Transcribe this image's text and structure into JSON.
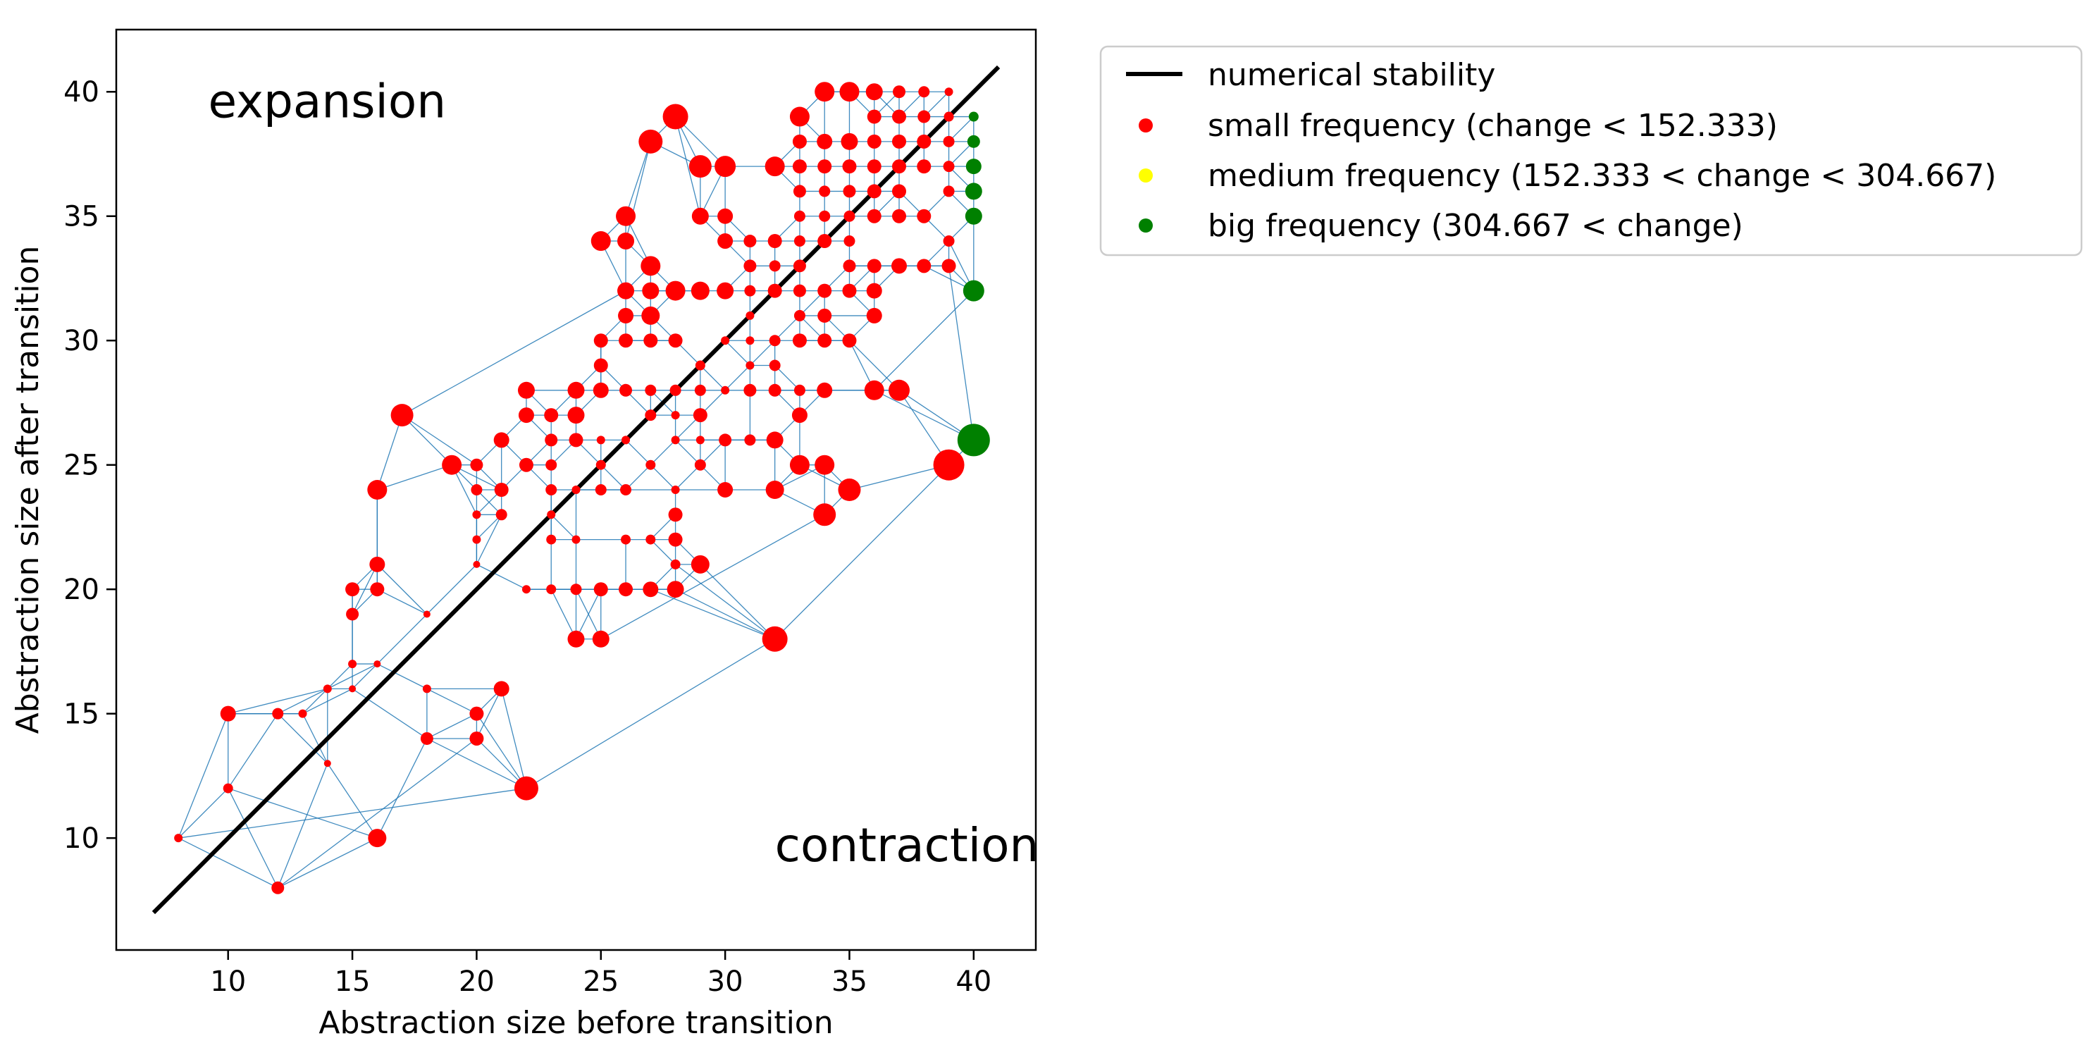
{
  "chart_data": {
    "type": "scatter",
    "xlabel": "Abstraction size before transition",
    "ylabel": "Abstraction size after transition",
    "xlim": [
      5.5,
      42.5
    ],
    "ylim": [
      5.5,
      42.5
    ],
    "xticks": [
      10,
      15,
      20,
      25,
      30,
      35,
      40
    ],
    "yticks": [
      10,
      15,
      20,
      25,
      30,
      35,
      40
    ],
    "annotations": [
      {
        "text": "expansion",
        "x": 9.2,
        "y": 39.6
      },
      {
        "text": "contraction",
        "x": 32.0,
        "y": 9.7
      }
    ],
    "reference_line": {
      "name": "numerical stability",
      "from": [
        7,
        7
      ],
      "to": [
        41,
        41
      ]
    },
    "legend": {
      "placement": "outside-upper-right",
      "entries": [
        {
          "label": "numerical stability",
          "marker": "line",
          "color": "#000000"
        },
        {
          "label": "small frequency (change < 152.333)",
          "marker": "dot",
          "color": "#ff0000"
        },
        {
          "label": "medium frequency (152.333 < change < 304.667)",
          "marker": "dot",
          "color": "#ffff00"
        },
        {
          "label": "big frequency (304.667 < change)",
          "marker": "dot",
          "color": "#008000"
        }
      ]
    },
    "colors": {
      "small": "#ff0000",
      "medium": "#ffff00",
      "big": "#008000",
      "edge": "#1f77b4",
      "line": "#000000"
    },
    "series": [
      {
        "name": "small frequency (change < 152.333)",
        "color": "#ff0000",
        "points": [
          [
            8,
            10,
            6
          ],
          [
            12,
            8,
            9
          ],
          [
            16,
            10,
            13
          ],
          [
            22,
            12,
            17
          ],
          [
            10,
            12,
            7
          ],
          [
            10,
            15,
            11
          ],
          [
            12,
            15,
            8
          ],
          [
            13,
            15,
            6
          ],
          [
            14,
            13,
            5
          ],
          [
            14,
            16,
            6
          ],
          [
            15,
            17,
            6
          ],
          [
            15,
            16,
            5
          ],
          [
            15,
            19,
            9
          ],
          [
            15,
            20,
            10
          ],
          [
            16,
            20,
            10
          ],
          [
            16,
            21,
            11
          ],
          [
            16,
            17,
            5
          ],
          [
            16,
            24,
            14
          ],
          [
            17,
            27,
            16
          ],
          [
            18,
            14,
            9
          ],
          [
            18,
            16,
            6
          ],
          [
            18,
            19,
            5
          ],
          [
            20,
            14,
            10
          ],
          [
            20,
            15,
            10
          ],
          [
            20,
            22,
            6
          ],
          [
            20,
            21,
            5
          ],
          [
            20,
            23,
            6
          ],
          [
            20,
            24,
            8
          ],
          [
            20,
            25,
            9
          ],
          [
            19,
            25,
            14
          ],
          [
            21,
            16,
            11
          ],
          [
            21,
            23,
            8
          ],
          [
            21,
            24,
            10
          ],
          [
            21,
            26,
            11
          ],
          [
            22,
            20,
            6
          ],
          [
            22,
            25,
            10
          ],
          [
            22,
            28,
            12
          ],
          [
            22,
            27,
            11
          ],
          [
            23,
            20,
            7
          ],
          [
            23,
            22,
            7
          ],
          [
            23,
            23,
            6
          ],
          [
            23,
            24,
            8
          ],
          [
            23,
            25,
            8
          ],
          [
            23,
            26,
            9
          ],
          [
            23,
            27,
            10
          ],
          [
            24,
            18,
            12
          ],
          [
            24,
            20,
            8
          ],
          [
            24,
            22,
            6
          ],
          [
            24,
            24,
            6
          ],
          [
            24,
            26,
            10
          ],
          [
            24,
            27,
            12
          ],
          [
            24,
            28,
            12
          ],
          [
            25,
            18,
            12
          ],
          [
            25,
            20,
            10
          ],
          [
            25,
            24,
            8
          ],
          [
            25,
            25,
            7
          ],
          [
            25,
            26,
            6
          ],
          [
            25,
            28,
            11
          ],
          [
            25,
            29,
            10
          ],
          [
            25,
            30,
            10
          ],
          [
            25,
            34,
            14
          ],
          [
            26,
            20,
            10
          ],
          [
            26,
            22,
            7
          ],
          [
            26,
            24,
            8
          ],
          [
            26,
            26,
            6
          ],
          [
            26,
            28,
            9
          ],
          [
            26,
            30,
            10
          ],
          [
            26,
            31,
            11
          ],
          [
            26,
            32,
            12
          ],
          [
            26,
            34,
            12
          ],
          [
            26,
            35,
            14
          ],
          [
            27,
            20,
            11
          ],
          [
            27,
            22,
            7
          ],
          [
            27,
            25,
            7
          ],
          [
            27,
            27,
            8
          ],
          [
            27,
            28,
            8
          ],
          [
            27,
            30,
            10
          ],
          [
            27,
            32,
            12
          ],
          [
            27,
            31,
            13
          ],
          [
            27,
            33,
            14
          ],
          [
            27,
            38,
            17
          ],
          [
            28,
            20,
            12
          ],
          [
            28,
            21,
            7
          ],
          [
            28,
            22,
            10
          ],
          [
            28,
            23,
            10
          ],
          [
            28,
            24,
            6
          ],
          [
            28,
            26,
            6
          ],
          [
            28,
            27,
            6
          ],
          [
            28,
            28,
            8
          ],
          [
            28,
            30,
            10
          ],
          [
            28,
            32,
            14
          ],
          [
            28,
            39,
            18
          ],
          [
            29,
            21,
            13
          ],
          [
            29,
            25,
            8
          ],
          [
            29,
            26,
            6
          ],
          [
            29,
            27,
            10
          ],
          [
            29,
            28,
            8
          ],
          [
            29,
            29,
            7
          ],
          [
            29,
            32,
            13
          ],
          [
            29,
            35,
            12
          ],
          [
            29,
            37,
            16
          ],
          [
            30,
            24,
            11
          ],
          [
            30,
            28,
            6
          ],
          [
            30,
            30,
            6
          ],
          [
            30,
            32,
            12
          ],
          [
            30,
            34,
            11
          ],
          [
            30,
            35,
            11
          ],
          [
            30,
            37,
            15
          ],
          [
            30,
            26,
            9
          ],
          [
            31,
            26,
            8
          ],
          [
            31,
            28,
            9
          ],
          [
            31,
            29,
            6
          ],
          [
            31,
            30,
            6
          ],
          [
            31,
            32,
            8
          ],
          [
            31,
            33,
            9
          ],
          [
            31,
            34,
            9
          ],
          [
            31,
            31,
            6
          ],
          [
            32,
            18,
            18
          ],
          [
            32,
            24,
            13
          ],
          [
            32,
            26,
            12
          ],
          [
            32,
            28,
            9
          ],
          [
            32,
            30,
            8
          ],
          [
            32,
            32,
            10
          ],
          [
            32,
            33,
            8
          ],
          [
            32,
            34,
            10
          ],
          [
            32,
            37,
            14
          ],
          [
            32,
            29,
            8
          ],
          [
            33,
            25,
            14
          ],
          [
            33,
            27,
            11
          ],
          [
            33,
            28,
            8
          ],
          [
            33,
            30,
            10
          ],
          [
            33,
            31,
            8
          ],
          [
            33,
            32,
            9
          ],
          [
            33,
            33,
            9
          ],
          [
            33,
            34,
            8
          ],
          [
            33,
            35,
            8
          ],
          [
            33,
            37,
            10
          ],
          [
            33,
            38,
            10
          ],
          [
            33,
            39,
            14
          ],
          [
            33,
            36,
            9
          ],
          [
            34,
            23,
            16
          ],
          [
            34,
            25,
            14
          ],
          [
            34,
            28,
            11
          ],
          [
            34,
            30,
            10
          ],
          [
            34,
            31,
            10
          ],
          [
            34,
            32,
            10
          ],
          [
            34,
            34,
            10
          ],
          [
            34,
            35,
            8
          ],
          [
            34,
            36,
            8
          ],
          [
            34,
            37,
            10
          ],
          [
            34,
            38,
            11
          ],
          [
            34,
            40,
            14
          ],
          [
            35,
            24,
            16
          ],
          [
            35,
            30,
            10
          ],
          [
            35,
            32,
            10
          ],
          [
            35,
            33,
            9
          ],
          [
            35,
            34,
            8
          ],
          [
            35,
            35,
            8
          ],
          [
            35,
            36,
            9
          ],
          [
            35,
            37,
            10
          ],
          [
            35,
            38,
            12
          ],
          [
            35,
            40,
            14
          ],
          [
            36,
            28,
            14
          ],
          [
            36,
            31,
            11
          ],
          [
            36,
            32,
            11
          ],
          [
            36,
            33,
            10
          ],
          [
            36,
            35,
            10
          ],
          [
            36,
            36,
            10
          ],
          [
            36,
            37,
            10
          ],
          [
            36,
            38,
            10
          ],
          [
            36,
            39,
            10
          ],
          [
            36,
            40,
            12
          ],
          [
            37,
            28,
            15
          ],
          [
            37,
            33,
            11
          ],
          [
            37,
            35,
            10
          ],
          [
            37,
            36,
            10
          ],
          [
            37,
            37,
            10
          ],
          [
            37,
            38,
            10
          ],
          [
            37,
            39,
            10
          ],
          [
            37,
            40,
            9
          ],
          [
            38,
            33,
            10
          ],
          [
            38,
            35,
            10
          ],
          [
            38,
            37,
            10
          ],
          [
            38,
            38,
            10
          ],
          [
            38,
            39,
            9
          ],
          [
            38,
            40,
            8
          ],
          [
            39,
            25,
            22
          ],
          [
            39,
            33,
            10
          ],
          [
            39,
            36,
            8
          ],
          [
            39,
            37,
            8
          ],
          [
            39,
            38,
            8
          ],
          [
            39,
            39,
            7
          ],
          [
            39,
            40,
            6
          ],
          [
            39,
            34,
            8
          ]
        ]
      },
      {
        "name": "medium frequency (152.333 < change < 304.667)",
        "color": "#ffff00",
        "points": []
      },
      {
        "name": "big frequency (304.667 < change)",
        "color": "#008000",
        "points": [
          [
            40,
            26,
            23
          ],
          [
            40,
            32,
            15
          ],
          [
            40,
            35,
            12
          ],
          [
            40,
            36,
            12
          ],
          [
            40,
            37,
            11
          ],
          [
            40,
            38,
            9
          ],
          [
            40,
            39,
            7
          ]
        ]
      }
    ]
  }
}
